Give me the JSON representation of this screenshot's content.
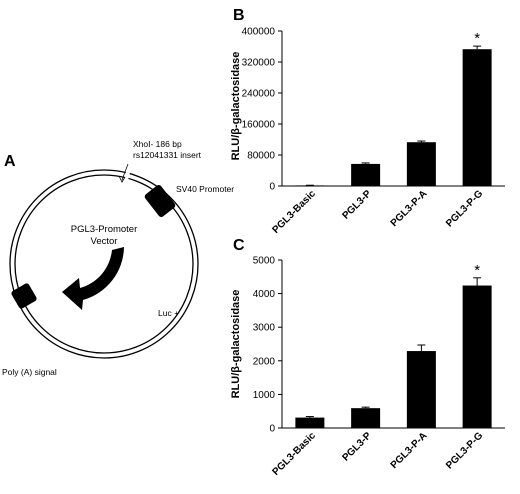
{
  "panels": {
    "a": {
      "letter": "A",
      "insert_line1": "XhoI- 186 bp",
      "insert_line2": "rs12041331 insert",
      "promoter_label": "SV40 Promoter",
      "vector_line1": "PGL3-Promoter",
      "vector_line2": "Vector",
      "luc_label": "Luc +",
      "polya_label": "Poly (A) signal"
    },
    "b": {
      "letter": "B"
    },
    "c": {
      "letter": "C"
    }
  },
  "chart_data": [
    {
      "type": "bar",
      "panel": "B",
      "categories": [
        "PGL3-Basic",
        "PGL3-P",
        "PGL3-P-A",
        "PGL3-P-G"
      ],
      "values": [
        1500,
        57000,
        113000,
        353000
      ],
      "errors": [
        500,
        2500,
        3000,
        8000
      ],
      "annotations": [
        "",
        "",
        "",
        "*"
      ],
      "ylabel": "RLU/β-galactosidase",
      "ylim": [
        0,
        400000
      ],
      "yticks": [
        0,
        80000,
        160000,
        240000,
        320000,
        400000
      ],
      "bar_color": "#000000",
      "grid": false
    },
    {
      "type": "bar",
      "panel": "C",
      "categories": [
        "PGL3-Basic",
        "PGL3-P",
        "PGL3-P-A",
        "PGL3-P-G"
      ],
      "values": [
        310,
        590,
        2290,
        4240
      ],
      "errors": [
        30,
        30,
        180,
        230
      ],
      "annotations": [
        "",
        "",
        "",
        "*"
      ],
      "ylabel": "RLU/β-galactosidase",
      "ylim": [
        0,
        5000
      ],
      "yticks": [
        0,
        1000,
        2000,
        3000,
        4000,
        5000
      ],
      "bar_color": "#000000",
      "grid": false
    }
  ]
}
